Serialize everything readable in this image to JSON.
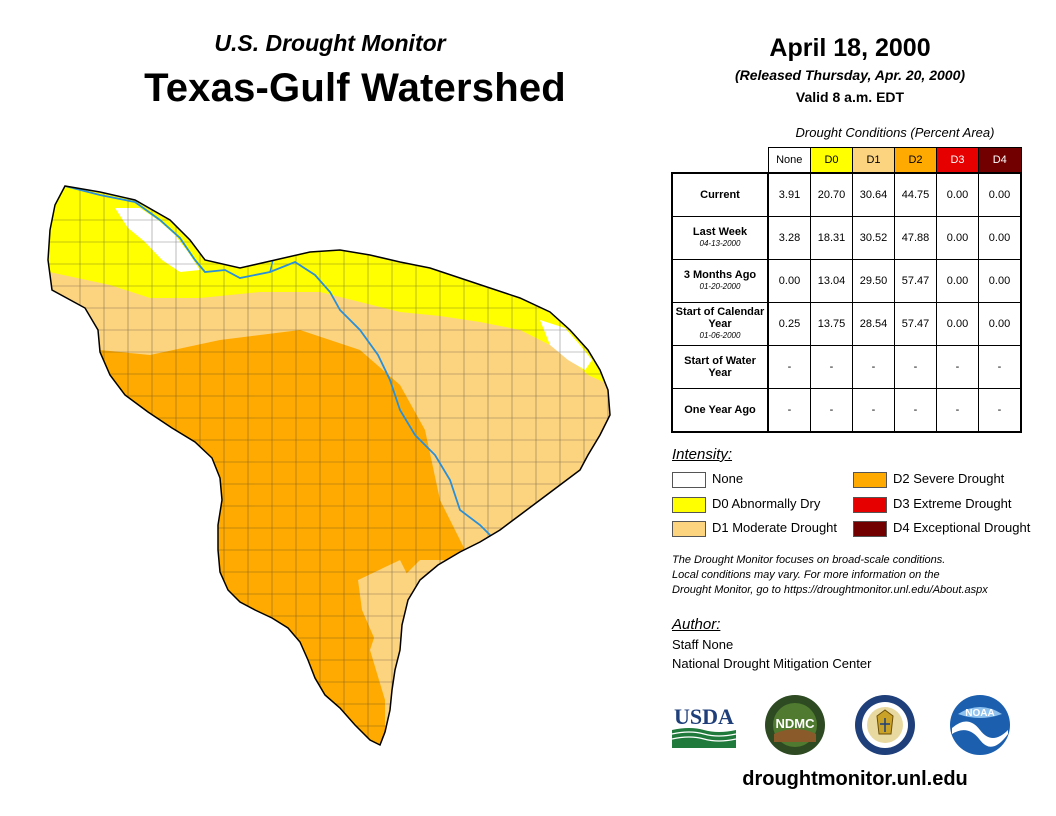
{
  "header": {
    "subtitle": "U.S. Drought Monitor",
    "title": "Texas-Gulf Watershed"
  },
  "date": {
    "main": "April 18, 2000",
    "released": "(Released Thursday, Apr. 20, 2000)",
    "valid": "Valid 8 a.m. EDT"
  },
  "conditions": {
    "title": "Drought Conditions (Percent Area)",
    "columns": [
      "None",
      "D0",
      "D1",
      "D2",
      "D3",
      "D4"
    ],
    "column_colors": [
      "#ffffff",
      "#ffff00",
      "#fcd37f",
      "#ffaa00",
      "#e60000",
      "#730000"
    ],
    "column_text_colors": [
      "#000000",
      "#000000",
      "#000000",
      "#000000",
      "#ffffff",
      "#ffffff"
    ],
    "rows": [
      {
        "label": "Current",
        "date": "",
        "values": [
          "3.91",
          "20.70",
          "30.64",
          "44.75",
          "0.00",
          "0.00"
        ]
      },
      {
        "label": "Last Week",
        "date": "04-13-2000",
        "values": [
          "3.28",
          "18.31",
          "30.52",
          "47.88",
          "0.00",
          "0.00"
        ]
      },
      {
        "label": "3 Months Ago",
        "date": "01-20-2000",
        "values": [
          "0.00",
          "13.04",
          "29.50",
          "57.47",
          "0.00",
          "0.00"
        ]
      },
      {
        "label": "Start of Calendar Year",
        "date": "01-06-2000",
        "values": [
          "0.25",
          "13.75",
          "28.54",
          "57.47",
          "0.00",
          "0.00"
        ]
      },
      {
        "label": "Start of Water Year",
        "date": "",
        "values": [
          "-",
          "-",
          "-",
          "-",
          "-",
          "-"
        ]
      },
      {
        "label": "One Year Ago",
        "date": "",
        "values": [
          "-",
          "-",
          "-",
          "-",
          "-",
          "-"
        ]
      }
    ]
  },
  "intensity": {
    "title": "Intensity:",
    "items": [
      {
        "label": "None",
        "color": "#ffffff"
      },
      {
        "label": "D0 Abnormally Dry",
        "color": "#ffff00"
      },
      {
        "label": "D1 Moderate Drought",
        "color": "#fcd37f"
      },
      {
        "label": "D2 Severe Drought",
        "color": "#ffaa00"
      },
      {
        "label": "D3 Extreme Drought",
        "color": "#e60000"
      },
      {
        "label": "D4 Exceptional Drought",
        "color": "#730000"
      }
    ]
  },
  "note": {
    "line1": "The Drought Monitor focuses on broad-scale conditions.",
    "line2": "Local conditions may vary. For more information on the",
    "line3": "Drought Monitor, go to https://droughtmonitor.unl.edu/About.aspx"
  },
  "author": {
    "title": "Author:",
    "name": "Staff None",
    "org": "National Drought Mitigation Center"
  },
  "logos": {
    "usda": "USDA",
    "ndmc": "NDMC",
    "noaa": "NOAA"
  },
  "url": "droughtmonitor.unl.edu",
  "colors": {
    "none": "#ffffff",
    "d0": "#ffff00",
    "d1": "#fcd37f",
    "d2": "#ffaa00",
    "river": "#2a8fd8"
  }
}
